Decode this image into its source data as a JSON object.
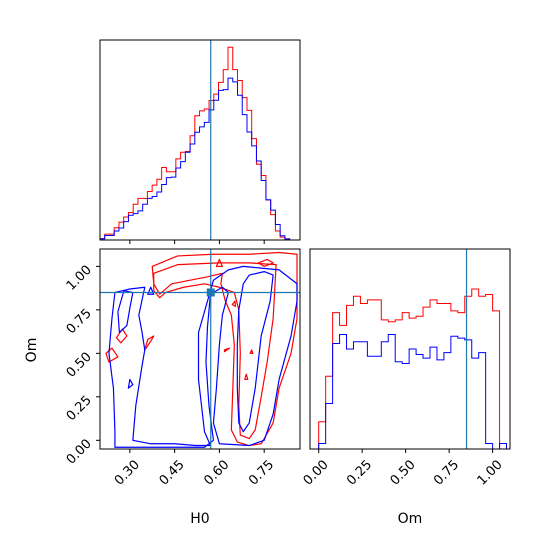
{
  "chart_data": {
    "type": "corner",
    "parameters": [
      "H0",
      "Om"
    ],
    "truth": {
      "H0": 0.571,
      "Om": 0.85
    },
    "colors": {
      "red": "#ff0000",
      "blue": "#0000ff",
      "truth": "#1f77b4"
    },
    "h0_range": [
      0.2,
      0.87
    ],
    "om_range": [
      -0.05,
      1.1
    ],
    "h0_ticks": [
      "0.30",
      "0.45",
      "0.60",
      "0.75"
    ],
    "om_ticks": [
      "0.00",
      "0.25",
      "0.50",
      "0.75",
      "1.00"
    ],
    "xlabel_left": "H0",
    "xlabel_right": "Om",
    "ylabel": "Om",
    "hist_h0": {
      "edges": [
        0.2,
        0.2159,
        0.2318,
        0.2476,
        0.2635,
        0.2794,
        0.2953,
        0.3112,
        0.3271,
        0.3429,
        0.3588,
        0.3747,
        0.3906,
        0.4065,
        0.4224,
        0.4382,
        0.4541,
        0.47,
        0.4859,
        0.5018,
        0.5176,
        0.5335,
        0.5494,
        0.5653,
        0.5812,
        0.5971,
        0.6129,
        0.6288,
        0.6447,
        0.6606,
        0.6765,
        0.6924,
        0.7082,
        0.7241,
        0.74,
        0.7559,
        0.7718,
        0.7876,
        0.8035,
        0.8194,
        0.8353,
        0.8512,
        0.8671
      ],
      "red": [
        0.6,
        2.5,
        2.5,
        5.2,
        7.6,
        9.8,
        11.7,
        15.2,
        17.7,
        17.7,
        20.6,
        23.3,
        25.8,
        30.8,
        29.0,
        29.0,
        34.5,
        37.3,
        37.6,
        44.3,
        52.8,
        54.9,
        55.7,
        59.3,
        62.0,
        67.0,
        72.4,
        81.9,
        72.4,
        67.8,
        60.5,
        55.1,
        43.1,
        32.2,
        27.4,
        17.0,
        10.8,
        3.8,
        1.2,
        0.5
      ],
      "blue": [
        0.5,
        1.9,
        1.9,
        3.8,
        5.1,
        7.8,
        10.5,
        11.2,
        12.4,
        15.2,
        17.7,
        18.5,
        20.4,
        23.6,
        26.5,
        26.7,
        30.6,
        33.3,
        37.3,
        40.8,
        45.8,
        48.1,
        50.0,
        55.3,
        59.4,
        63.6,
        63.9,
        68.8,
        67.2,
        61.5,
        53.3,
        45.9,
        40.0,
        33.6,
        25.3,
        17.1,
        12.7,
        6.6,
        1.8,
        0.5
      ]
    },
    "hist_om": {
      "edges": [
        -0.04,
        0.0,
        0.04,
        0.08,
        0.12,
        0.16,
        0.2,
        0.24,
        0.28,
        0.32,
        0.36,
        0.4,
        0.44,
        0.48,
        0.52,
        0.56,
        0.6,
        0.64,
        0.68,
        0.72,
        0.76,
        0.8,
        0.84,
        0.88,
        0.92,
        0.96,
        1.0,
        1.04,
        1.08
      ],
      "red": [
        0,
        15,
        40,
        75,
        68,
        79,
        84,
        80,
        82,
        82,
        71,
        70,
        71,
        75,
        72,
        73,
        78,
        82,
        80,
        80,
        76,
        75,
        84,
        88,
        84,
        85,
        76,
        0
      ],
      "blue": [
        0,
        3,
        25,
        58,
        63,
        55,
        59,
        59,
        51,
        51,
        59,
        63,
        48,
        47,
        55,
        52,
        50,
        56,
        49,
        53,
        62,
        61,
        60,
        50,
        53,
        3,
        0,
        3
      ]
    },
    "contours": {
      "red": [
        [
          [
            0.375,
            1.0
          ],
          [
            0.46,
            1.06
          ],
          [
            0.58,
            1.07
          ],
          [
            0.7,
            1.07
          ],
          [
            0.8,
            1.08
          ],
          [
            0.86,
            1.07
          ],
          [
            0.86,
            0.7
          ],
          [
            0.84,
            0.5
          ],
          [
            0.8,
            0.3
          ],
          [
            0.78,
            0.1
          ],
          [
            0.74,
            -0.02
          ],
          [
            0.7,
            -0.03
          ],
          [
            0.66,
            -0.01
          ],
          [
            0.64,
            0.06
          ],
          [
            0.645,
            0.3
          ],
          [
            0.65,
            0.55
          ],
          [
            0.64,
            0.72
          ],
          [
            0.62,
            0.8
          ],
          [
            0.605,
            0.9
          ],
          [
            0.61,
            0.96
          ],
          [
            0.56,
            0.94
          ],
          [
            0.5,
            0.92
          ],
          [
            0.44,
            0.9
          ],
          [
            0.4,
            0.84
          ],
          [
            0.38,
            0.9
          ],
          [
            0.375,
            1.0
          ]
        ],
        [
          [
            0.38,
            0.96
          ],
          [
            0.46,
            1.01
          ],
          [
            0.6,
            1.02
          ],
          [
            0.7,
            1.02
          ],
          [
            0.79,
            1.01
          ],
          [
            0.78,
            0.7
          ],
          [
            0.76,
            0.45
          ],
          [
            0.74,
            0.25
          ],
          [
            0.72,
            0.06
          ],
          [
            0.7,
            0.01
          ],
          [
            0.67,
            0.03
          ],
          [
            0.665,
            0.2
          ],
          [
            0.67,
            0.5
          ],
          [
            0.665,
            0.75
          ],
          [
            0.65,
            0.85
          ],
          [
            0.6,
            0.88
          ],
          [
            0.55,
            0.9
          ],
          [
            0.48,
            0.88
          ],
          [
            0.42,
            0.85
          ],
          [
            0.4,
            0.82
          ],
          [
            0.38,
            0.86
          ],
          [
            0.38,
            0.96
          ]
        ],
        [
          [
            0.22,
            0.5
          ],
          [
            0.24,
            0.53
          ],
          [
            0.26,
            0.48
          ],
          [
            0.23,
            0.45
          ],
          [
            0.22,
            0.5
          ]
        ],
        [
          [
            0.255,
            0.59
          ],
          [
            0.275,
            0.64
          ],
          [
            0.29,
            0.6
          ],
          [
            0.27,
            0.56
          ],
          [
            0.255,
            0.59
          ]
        ],
        [
          [
            0.35,
            0.52
          ],
          [
            0.37,
            0.57
          ],
          [
            0.38,
            0.6
          ],
          [
            0.36,
            0.58
          ],
          [
            0.35,
            0.52
          ]
        ],
        [
          [
            0.59,
            1.0
          ],
          [
            0.6,
            1.04
          ],
          [
            0.61,
            1.0
          ],
          [
            0.59,
            1.0
          ]
        ],
        [
          [
            0.73,
            1.02
          ],
          [
            0.76,
            1.04
          ],
          [
            0.78,
            1.02
          ],
          [
            0.75,
            1.0
          ],
          [
            0.73,
            1.02
          ]
        ],
        [
          [
            0.643,
            0.78
          ],
          [
            0.652,
            0.8
          ],
          [
            0.654,
            0.77
          ],
          [
            0.643,
            0.78
          ]
        ],
        [
          [
            0.617,
            0.52
          ],
          [
            0.634,
            0.53
          ],
          [
            0.617,
            0.51
          ],
          [
            0.617,
            0.52
          ]
        ],
        [
          [
            0.685,
            0.35
          ],
          [
            0.69,
            0.38
          ],
          [
            0.695,
            0.35
          ],
          [
            0.685,
            0.35
          ]
        ],
        [
          [
            0.703,
            0.5
          ],
          [
            0.708,
            0.52
          ],
          [
            0.712,
            0.5
          ],
          [
            0.703,
            0.5
          ]
        ]
      ],
      "blue": [
        [
          [
            0.245,
            0.3
          ],
          [
            0.23,
            0.5
          ],
          [
            0.24,
            0.7
          ],
          [
            0.25,
            0.85
          ],
          [
            0.3,
            0.87
          ],
          [
            0.35,
            0.88
          ],
          [
            0.34,
            0.8
          ],
          [
            0.33,
            0.72
          ],
          [
            0.34,
            0.63
          ],
          [
            0.35,
            0.52
          ],
          [
            0.34,
            0.42
          ],
          [
            0.32,
            0.2
          ],
          [
            0.31,
            0.0
          ],
          [
            0.37,
            -0.02
          ],
          [
            0.45,
            -0.02
          ],
          [
            0.52,
            -0.03
          ],
          [
            0.57,
            -0.03
          ],
          [
            0.55,
            0.05
          ],
          [
            0.53,
            0.35
          ],
          [
            0.53,
            0.62
          ],
          [
            0.56,
            0.8
          ],
          [
            0.58,
            0.92
          ],
          [
            0.63,
            0.98
          ],
          [
            0.68,
            1.0
          ],
          [
            0.74,
            0.99
          ],
          [
            0.8,
            0.98
          ],
          [
            0.86,
            0.9
          ],
          [
            0.86,
            0.8
          ],
          [
            0.84,
            0.6
          ],
          [
            0.8,
            0.35
          ],
          [
            0.78,
            0.15
          ],
          [
            0.75,
            0.0
          ],
          [
            0.7,
            -0.03
          ],
          [
            0.6,
            -0.02
          ],
          [
            0.58,
            0.1
          ],
          [
            0.59,
            0.3
          ],
          [
            0.6,
            0.55
          ],
          [
            0.61,
            0.72
          ],
          [
            0.63,
            0.85
          ],
          [
            0.61,
            0.88
          ],
          [
            0.57,
            0.84
          ],
          [
            0.56,
            0.65
          ],
          [
            0.555,
            0.45
          ],
          [
            0.565,
            0.2
          ],
          [
            0.58,
            0.0
          ],
          [
            0.55,
            -0.04
          ],
          [
            0.45,
            -0.04
          ],
          [
            0.35,
            -0.04
          ],
          [
            0.25,
            -0.04
          ],
          [
            0.25,
            0.05
          ],
          [
            0.245,
            0.3
          ]
        ],
        [
          [
            0.265,
            0.62
          ],
          [
            0.26,
            0.74
          ],
          [
            0.28,
            0.86
          ],
          [
            0.31,
            0.85
          ],
          [
            0.3,
            0.76
          ],
          [
            0.29,
            0.66
          ],
          [
            0.265,
            0.62
          ]
        ],
        [
          [
            0.665,
            0.1
          ],
          [
            0.66,
            0.3
          ],
          [
            0.66,
            0.55
          ],
          [
            0.665,
            0.75
          ],
          [
            0.68,
            0.9
          ],
          [
            0.7,
            0.95
          ],
          [
            0.75,
            0.97
          ],
          [
            0.78,
            0.95
          ],
          [
            0.77,
            0.8
          ],
          [
            0.74,
            0.6
          ],
          [
            0.72,
            0.3
          ],
          [
            0.7,
            0.1
          ],
          [
            0.68,
            0.05
          ],
          [
            0.665,
            0.1
          ]
        ],
        [
          [
            0.295,
            0.3
          ],
          [
            0.3,
            0.35
          ],
          [
            0.31,
            0.32
          ],
          [
            0.295,
            0.3
          ]
        ],
        [
          [
            0.36,
            0.84
          ],
          [
            0.37,
            0.88
          ],
          [
            0.38,
            0.84
          ],
          [
            0.36,
            0.84
          ]
        ]
      ]
    }
  }
}
